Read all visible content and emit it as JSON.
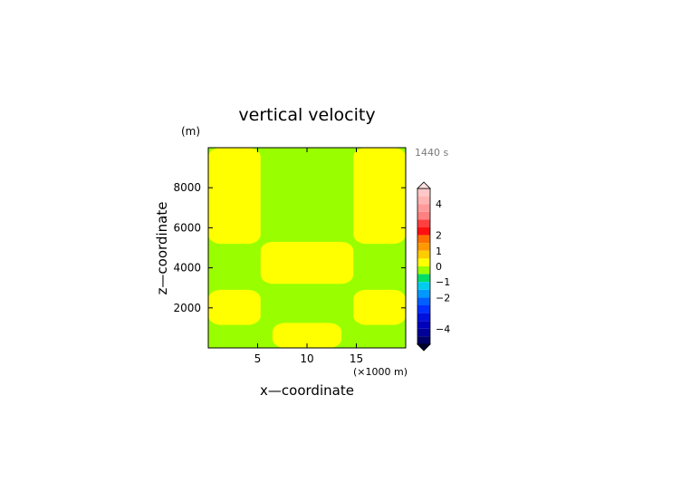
{
  "chart_data": {
    "type": "heatmap",
    "title": "vertical velocity",
    "xlabel": "x—coordinate",
    "ylabel": "z—coordinate",
    "y_unit": "(m)",
    "x_unit": "(×1000 m)",
    "time_label": "1440 s",
    "xlim": [
      0,
      20
    ],
    "ylim": [
      0,
      10000
    ],
    "x_ticks": [
      "5",
      "10",
      "15"
    ],
    "y_ticks": [
      "2000",
      "4000",
      "6000",
      "8000"
    ],
    "colorbar": {
      "tick_labels": [
        "4",
        "2",
        "1",
        "0",
        "−1",
        "−2",
        "−4"
      ],
      "tick_values": [
        4,
        2,
        1,
        0,
        -1,
        -2,
        -4
      ],
      "range": [
        -5,
        5
      ]
    },
    "field_regions": [
      {
        "value_range": "0 to 0.5",
        "color": "#ffff00",
        "x": [
          0,
          5.3
        ],
        "z": [
          5200,
          10000
        ]
      },
      {
        "value_range": "0 to 0.5",
        "color": "#ffff00",
        "x": [
          14.7,
          20
        ],
        "z": [
          5200,
          10000
        ]
      },
      {
        "value_range": "0 to 0.5",
        "color": "#ffff00",
        "x": [
          5.3,
          14.7
        ],
        "z": [
          3200,
          5300
        ]
      },
      {
        "value_range": "0 to 0.5",
        "color": "#ffff00",
        "x": [
          0,
          5.3
        ],
        "z": [
          1150,
          2900
        ]
      },
      {
        "value_range": "0 to 0.5",
        "color": "#ffff00",
        "x": [
          14.7,
          20
        ],
        "z": [
          1150,
          2900
        ]
      },
      {
        "value_range": "0 to 0.5",
        "color": "#ffff00",
        "x": [
          6.5,
          13.5
        ],
        "z": [
          0,
          1250
        ]
      }
    ],
    "background": {
      "value_range": "-0.5 to 0",
      "color": "#99ff00"
    }
  }
}
